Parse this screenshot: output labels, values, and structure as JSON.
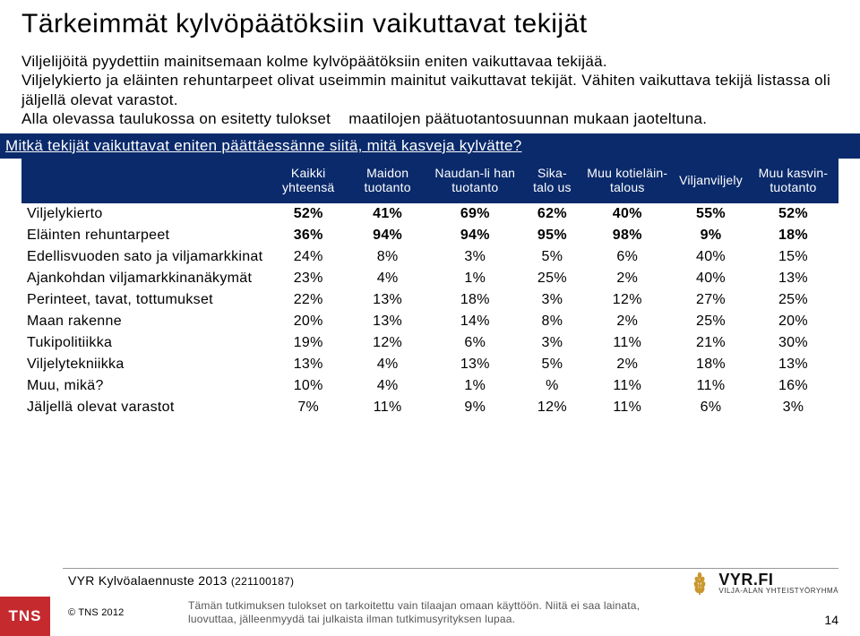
{
  "title": "Tärkeimmät kylvöpäätöksiin vaikuttavat tekijät",
  "intro": {
    "p1": "Viljelijöitä pyydettiin mainitsemaan kolme kylvöpäätöksiin eniten vaikuttavaa tekijää.",
    "p2": "Viljelykierto ja eläinten rehuntarpeet olivat useimmin mainitut vaikuttavat tekijät. Vähiten vaikuttava tekijä listassa oli jäljellä olevat varastot.",
    "p3a": "Alla olevassa taulukossa on esitetty tulokset",
    "p3b": "maatilojen päätuotantosuunnan mukaan jaoteltuna."
  },
  "question": "Mitkä tekijät vaikuttavat eniten päättäessänne siitä, mitä kasveja kylvätte?",
  "table": {
    "columns": [
      "Kaikki yhteensä",
      "Maidon tuotanto",
      "Naudan-li han tuotanto",
      "Sika-talo us",
      "Muu kotieläin- talous",
      "Viljanviljely",
      "Muu kasvin- tuotanto"
    ],
    "rows": [
      {
        "label": "Viljelykierto",
        "cells": [
          "52%",
          "41%",
          "69%",
          "62%",
          "40%",
          "55%",
          "52%"
        ],
        "bold": true
      },
      {
        "label": "Eläinten rehuntarpeet",
        "cells": [
          "36%",
          "94%",
          "94%",
          "95%",
          "98%",
          "9%",
          "18%"
        ],
        "bold": true
      },
      {
        "label": "Edellisvuoden sato ja viljamarkkinat",
        "cells": [
          "24%",
          "8%",
          "3%",
          "5%",
          "6%",
          "40%",
          "15%"
        ],
        "bold": false
      },
      {
        "label": "Ajankohdan viljamarkkinanäkymät",
        "cells": [
          "23%",
          "4%",
          "1%",
          "25%",
          "2%",
          "40%",
          "13%"
        ],
        "bold": false
      },
      {
        "label": "Perinteet, tavat, tottumukset",
        "cells": [
          "22%",
          "13%",
          "18%",
          "3%",
          "12%",
          "27%",
          "25%"
        ],
        "bold": false
      },
      {
        "label": "Maan rakenne",
        "cells": [
          "20%",
          "13%",
          "14%",
          "8%",
          "2%",
          "25%",
          "20%"
        ],
        "bold": false
      },
      {
        "label": "Tukipolitiikka",
        "cells": [
          "19%",
          "12%",
          "6%",
          "3%",
          "11%",
          "21%",
          "30%"
        ],
        "bold": false
      },
      {
        "label": "Viljelytekniikka",
        "cells": [
          "13%",
          "4%",
          "13%",
          "5%",
          "2%",
          "18%",
          "13%"
        ],
        "bold": false
      },
      {
        "label": "Muu, mikä?",
        "cells": [
          "10%",
          "4%",
          "1%",
          "%",
          "11%",
          "11%",
          "16%"
        ],
        "bold": false
      },
      {
        "label": "Jäljellä olevat varastot",
        "cells": [
          "7%",
          "11%",
          "9%",
          "12%",
          "11%",
          "6%",
          "3%"
        ],
        "bold": false
      }
    ]
  },
  "footer": {
    "project": "VYR Kylvöalaennuste 2013",
    "project_id": "(221100187)",
    "tns": "TNS",
    "copyright": "© TNS 2012",
    "disclaimer1": "Tämän tutkimuksen tulokset on tarkoitettu vain tilaajan omaan käyttöön. Niitä ei saa lainata,",
    "disclaimer2": "luovuttaa, jälleenmyydä tai julkaista ilman tutkimusyrityksen lupaa.",
    "page": "14",
    "logo_brand": "VYR.FI",
    "logo_tag": "VILJA-ALAN YHTEISTYÖRYHMÄ"
  },
  "colors": {
    "header_bg": "#0a2a6b",
    "tns_bg": "#c52a2f",
    "wheat": "#c9972f"
  }
}
